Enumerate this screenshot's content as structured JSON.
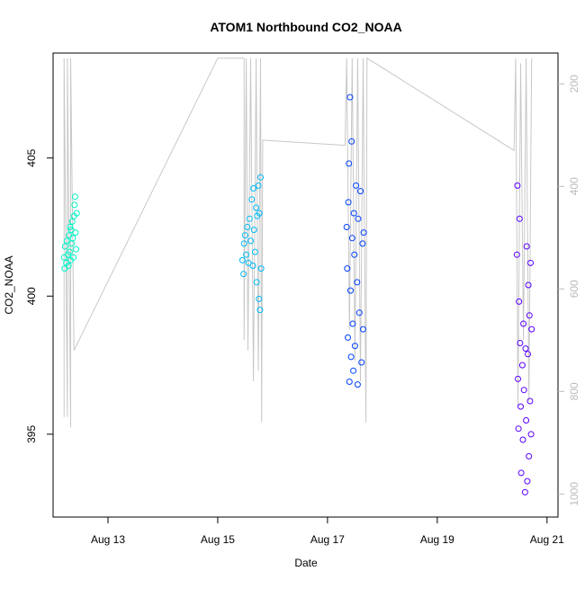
{
  "chart_data": {
    "type": "scatter",
    "title": "ATOM1 Northbound CO2_NOAA",
    "xlabel": "Date",
    "ylabel": "CO2_NOAA",
    "x_axis": {
      "unit": "day of August 2016",
      "range": [
        12.0,
        21.2
      ],
      "ticks": [
        13,
        15,
        17,
        19,
        21
      ],
      "tick_labels": [
        "Aug 13",
        "Aug 15",
        "Aug 17",
        "Aug 19",
        "Aug 21"
      ]
    },
    "y_axis": {
      "range": [
        392.0,
        408.8
      ],
      "ticks": [
        395,
        400,
        405
      ],
      "tick_labels": [
        "395",
        "400",
        "405"
      ]
    },
    "y2_axis": {
      "label": "",
      "reversed": true,
      "range": [
        1045,
        140
      ],
      "ticks": [
        200,
        400,
        600,
        800,
        1000
      ],
      "tick_labels": [
        "200",
        "400",
        "600",
        "800",
        "1000"
      ],
      "color": "#bbbbbb"
    },
    "grid": false,
    "legend": "none",
    "series": [
      {
        "color": "#00f5c8",
        "points": [
          {
            "x": 12.2,
            "y": 401.4
          },
          {
            "x": 12.21,
            "y": 401.0
          },
          {
            "x": 12.22,
            "y": 401.8
          },
          {
            "x": 12.24,
            "y": 401.2
          },
          {
            "x": 12.25,
            "y": 402.0
          },
          {
            "x": 12.27,
            "y": 401.5
          },
          {
            "x": 12.28,
            "y": 401.1
          },
          {
            "x": 12.29,
            "y": 402.2
          },
          {
            "x": 12.3,
            "y": 401.6
          },
          {
            "x": 12.31,
            "y": 402.5
          },
          {
            "x": 12.32,
            "y": 401.3
          },
          {
            "x": 12.33,
            "y": 402.4
          },
          {
            "x": 12.34,
            "y": 401.9
          },
          {
            "x": 12.35,
            "y": 402.7
          },
          {
            "x": 12.36,
            "y": 402.1
          },
          {
            "x": 12.37,
            "y": 401.4
          },
          {
            "x": 12.38,
            "y": 402.9
          },
          {
            "x": 12.39,
            "y": 403.3
          },
          {
            "x": 12.4,
            "y": 403.6
          },
          {
            "x": 12.41,
            "y": 402.3
          },
          {
            "x": 12.42,
            "y": 401.7
          },
          {
            "x": 12.43,
            "y": 403.0
          }
        ]
      },
      {
        "color": "#00baf5",
        "points": [
          {
            "x": 15.45,
            "y": 401.3
          },
          {
            "x": 15.47,
            "y": 400.8
          },
          {
            "x": 15.48,
            "y": 401.9
          },
          {
            "x": 15.5,
            "y": 402.2
          },
          {
            "x": 15.52,
            "y": 401.5
          },
          {
            "x": 15.54,
            "y": 402.5
          },
          {
            "x": 15.56,
            "y": 401.2
          },
          {
            "x": 15.58,
            "y": 402.8
          },
          {
            "x": 15.6,
            "y": 402.0
          },
          {
            "x": 15.62,
            "y": 403.5
          },
          {
            "x": 15.64,
            "y": 401.1
          },
          {
            "x": 15.65,
            "y": 403.9
          },
          {
            "x": 15.66,
            "y": 402.4
          },
          {
            "x": 15.68,
            "y": 401.6
          },
          {
            "x": 15.7,
            "y": 403.2
          },
          {
            "x": 15.71,
            "y": 400.5
          },
          {
            "x": 15.72,
            "y": 402.9
          },
          {
            "x": 15.74,
            "y": 404.0
          },
          {
            "x": 15.75,
            "y": 399.9
          },
          {
            "x": 15.76,
            "y": 403.0
          },
          {
            "x": 15.77,
            "y": 399.5
          },
          {
            "x": 15.78,
            "y": 404.3
          },
          {
            "x": 15.79,
            "y": 401.0
          }
        ]
      },
      {
        "color": "#0040ff",
        "points": [
          {
            "x": 17.35,
            "y": 402.5
          },
          {
            "x": 17.36,
            "y": 401.0
          },
          {
            "x": 17.37,
            "y": 398.5
          },
          {
            "x": 17.38,
            "y": 403.4
          },
          {
            "x": 17.39,
            "y": 404.8
          },
          {
            "x": 17.4,
            "y": 396.9
          },
          {
            "x": 17.41,
            "y": 407.2
          },
          {
            "x": 17.42,
            "y": 400.2
          },
          {
            "x": 17.43,
            "y": 397.8
          },
          {
            "x": 17.44,
            "y": 405.6
          },
          {
            "x": 17.45,
            "y": 402.1
          },
          {
            "x": 17.46,
            "y": 399.0
          },
          {
            "x": 17.47,
            "y": 397.3
          },
          {
            "x": 17.48,
            "y": 403.0
          },
          {
            "x": 17.49,
            "y": 401.5
          },
          {
            "x": 17.5,
            "y": 398.2
          },
          {
            "x": 17.52,
            "y": 404.0
          },
          {
            "x": 17.54,
            "y": 400.5
          },
          {
            "x": 17.55,
            "y": 396.8
          },
          {
            "x": 17.56,
            "y": 402.8
          },
          {
            "x": 17.58,
            "y": 399.4
          },
          {
            "x": 17.6,
            "y": 403.8
          },
          {
            "x": 17.62,
            "y": 397.6
          },
          {
            "x": 17.64,
            "y": 401.9
          },
          {
            "x": 17.65,
            "y": 398.8
          },
          {
            "x": 17.66,
            "y": 402.3
          }
        ]
      },
      {
        "color": "#5a00ff",
        "points": [
          {
            "x": 20.45,
            "y": 401.5
          },
          {
            "x": 20.46,
            "y": 404.0
          },
          {
            "x": 20.47,
            "y": 397.0
          },
          {
            "x": 20.48,
            "y": 395.2
          },
          {
            "x": 20.49,
            "y": 399.8
          },
          {
            "x": 20.5,
            "y": 402.8
          },
          {
            "x": 20.51,
            "y": 398.3
          },
          {
            "x": 20.52,
            "y": 396.0
          },
          {
            "x": 20.53,
            "y": 393.6
          },
          {
            "x": 20.55,
            "y": 397.5
          },
          {
            "x": 20.56,
            "y": 394.8
          },
          {
            "x": 20.57,
            "y": 399.0
          },
          {
            "x": 20.58,
            "y": 396.6
          },
          {
            "x": 20.6,
            "y": 392.9
          },
          {
            "x": 20.61,
            "y": 398.1
          },
          {
            "x": 20.62,
            "y": 395.5
          },
          {
            "x": 20.63,
            "y": 401.8
          },
          {
            "x": 20.64,
            "y": 393.3
          },
          {
            "x": 20.65,
            "y": 397.9
          },
          {
            "x": 20.66,
            "y": 400.4
          },
          {
            "x": 20.67,
            "y": 394.2
          },
          {
            "x": 20.68,
            "y": 399.3
          },
          {
            "x": 20.69,
            "y": 396.2
          },
          {
            "x": 20.7,
            "y": 401.2
          },
          {
            "x": 20.71,
            "y": 395.0
          },
          {
            "x": 20.72,
            "y": 398.8
          }
        ]
      }
    ],
    "altitude_overlay": {
      "color": "#c8c8c8",
      "axis": "y2",
      "points": [
        {
          "x": 12.2,
          "y": 850
        },
        {
          "x": 12.2,
          "y": 150
        },
        {
          "x": 12.26,
          "y": 850
        },
        {
          "x": 12.26,
          "y": 150
        },
        {
          "x": 12.32,
          "y": 870
        },
        {
          "x": 12.32,
          "y": 150
        },
        {
          "x": 12.38,
          "y": 720
        },
        {
          "x": 15.0,
          "y": 150
        },
        {
          "x": 15.48,
          "y": 150
        },
        {
          "x": 15.48,
          "y": 700
        },
        {
          "x": 15.52,
          "y": 150
        },
        {
          "x": 15.55,
          "y": 720
        },
        {
          "x": 15.6,
          "y": 150
        },
        {
          "x": 15.65,
          "y": 780
        },
        {
          "x": 15.7,
          "y": 150
        },
        {
          "x": 15.74,
          "y": 760
        },
        {
          "x": 15.78,
          "y": 150
        },
        {
          "x": 15.8,
          "y": 860
        },
        {
          "x": 15.82,
          "y": 310
        },
        {
          "x": 17.32,
          "y": 320
        },
        {
          "x": 17.35,
          "y": 150
        },
        {
          "x": 17.4,
          "y": 680
        },
        {
          "x": 17.45,
          "y": 150
        },
        {
          "x": 17.5,
          "y": 740
        },
        {
          "x": 17.55,
          "y": 150
        },
        {
          "x": 17.6,
          "y": 780
        },
        {
          "x": 17.65,
          "y": 150
        },
        {
          "x": 17.7,
          "y": 860
        },
        {
          "x": 17.72,
          "y": 150
        },
        {
          "x": 20.4,
          "y": 330
        },
        {
          "x": 20.43,
          "y": 150
        },
        {
          "x": 20.47,
          "y": 830
        },
        {
          "x": 20.52,
          "y": 160
        },
        {
          "x": 20.57,
          "y": 700
        },
        {
          "x": 20.62,
          "y": 150
        },
        {
          "x": 20.67,
          "y": 820
        },
        {
          "x": 20.72,
          "y": 150
        }
      ]
    }
  }
}
